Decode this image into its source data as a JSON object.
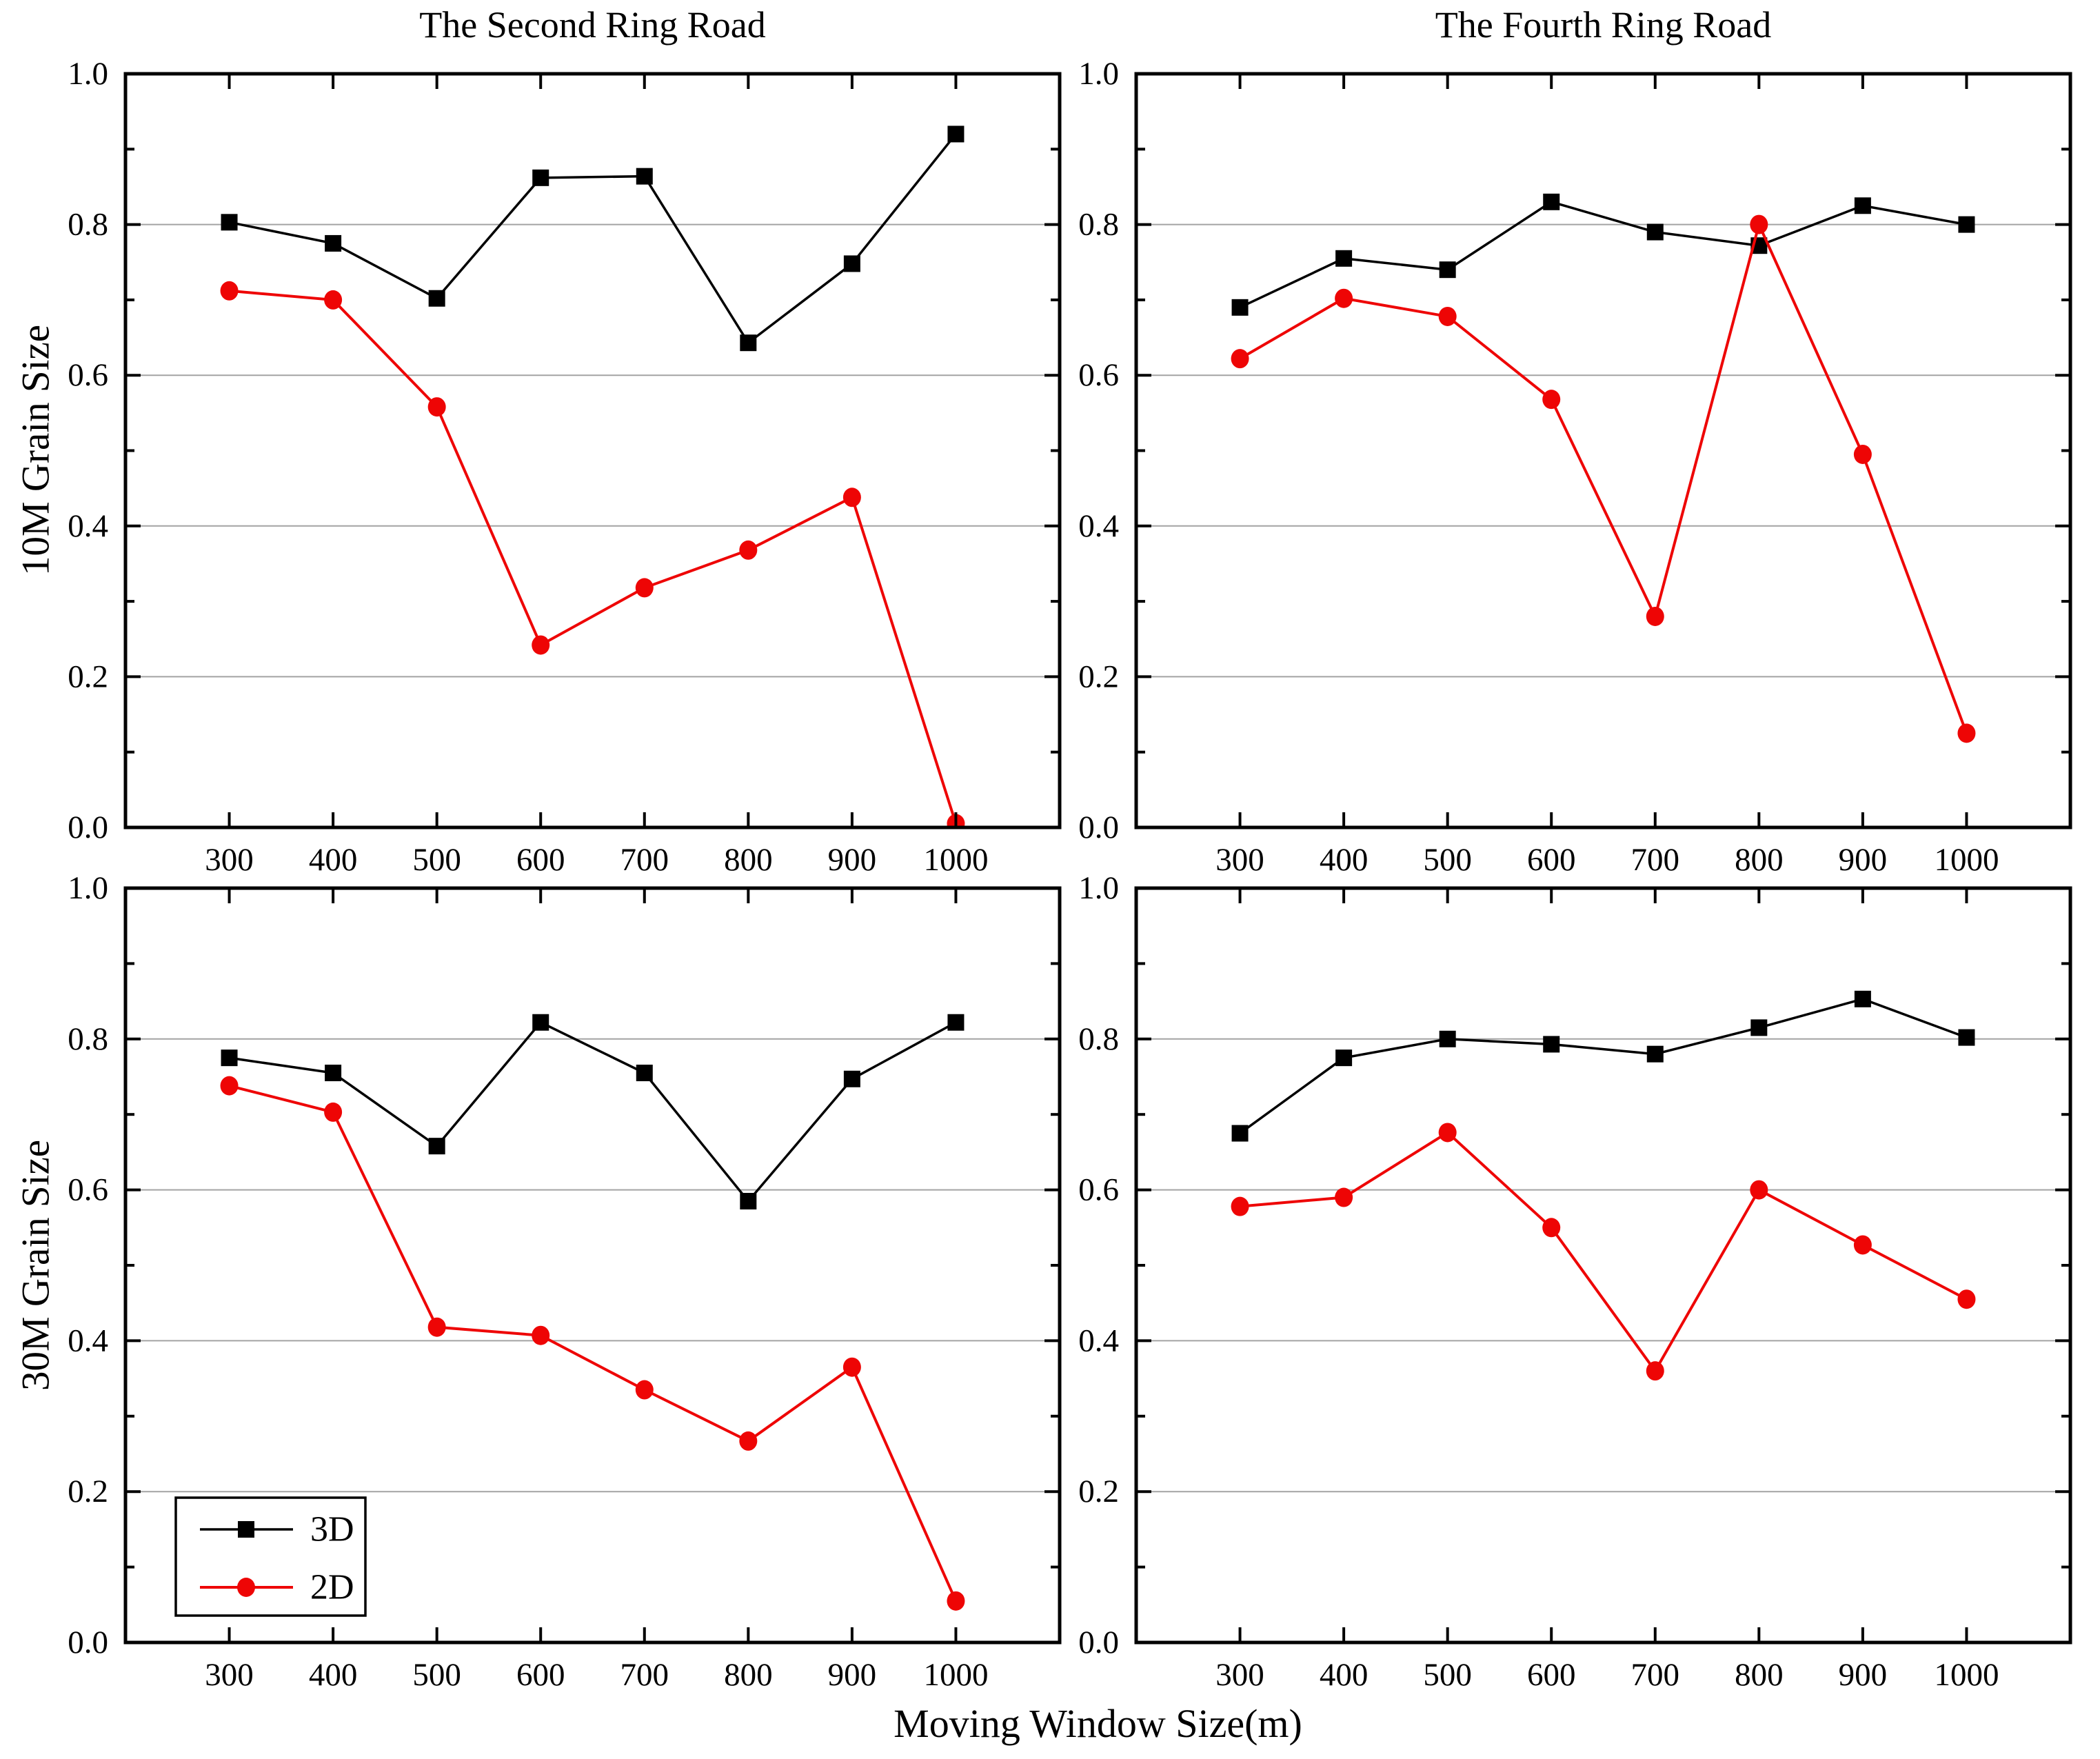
{
  "figure": {
    "x_axis_label": "Moving Window Size(m)",
    "colors": {
      "series_3d": "#000000",
      "series_2d": "#ee0505",
      "gridline": "#a3a3a3",
      "axis": "#000000",
      "background": "#ffffff"
    }
  },
  "legend": {
    "location": "bottom-left-panel lower-left",
    "items": [
      {
        "label": "3D",
        "marker": "square",
        "color": "#000000"
      },
      {
        "label": "2D",
        "marker": "circle",
        "color": "#ee0505"
      }
    ]
  },
  "chart_data": [
    {
      "type": "line",
      "title": "The Second Ring Road",
      "ylabel": "10M Grain Size",
      "x": [
        300,
        400,
        500,
        600,
        700,
        800,
        900,
        1000
      ],
      "x_tick_labels": [
        "300",
        "400",
        "500",
        "600",
        "700",
        "800",
        "900",
        "1000"
      ],
      "xlim": [
        200,
        1100
      ],
      "ylim": [
        0,
        1
      ],
      "y_major_ticks": [
        0.0,
        0.2,
        0.4,
        0.6,
        0.8,
        1.0
      ],
      "y_tick_labels": [
        "0.0",
        "0.2",
        "0.4",
        "0.6",
        "0.8",
        "1.0"
      ],
      "y_minor_ticks": [
        0.1,
        0.3,
        0.5,
        0.7,
        0.9
      ],
      "gridlines_y": [
        0.2,
        0.4,
        0.6,
        0.8
      ],
      "show_legend": false,
      "series": [
        {
          "name": "3D",
          "marker": "square",
          "color": "#000000",
          "values": [
            0.803,
            0.775,
            0.702,
            0.862,
            0.864,
            0.643,
            0.748,
            0.92
          ]
        },
        {
          "name": "2D",
          "marker": "circle",
          "color": "#ee0505",
          "values": [
            0.712,
            0.7,
            0.558,
            0.242,
            0.318,
            0.368,
            0.438,
            0.005
          ]
        }
      ]
    },
    {
      "type": "line",
      "title": "The Fourth Ring Road",
      "ylabel": null,
      "x": [
        300,
        400,
        500,
        600,
        700,
        800,
        900,
        1000
      ],
      "x_tick_labels": [
        "300",
        "400",
        "500",
        "600",
        "700",
        "800",
        "900",
        "1000"
      ],
      "xlim": [
        200,
        1100
      ],
      "ylim": [
        0,
        1
      ],
      "y_major_ticks": [
        0.0,
        0.2,
        0.4,
        0.6,
        0.8,
        1.0
      ],
      "y_tick_labels": [
        "0.0",
        "0.2",
        "0.4",
        "0.6",
        "0.8",
        "1.0"
      ],
      "y_minor_ticks": [
        0.1,
        0.3,
        0.5,
        0.7,
        0.9
      ],
      "gridlines_y": [
        0.2,
        0.4,
        0.6,
        0.8
      ],
      "show_legend": false,
      "series": [
        {
          "name": "3D",
          "marker": "square",
          "color": "#000000",
          "values": [
            0.69,
            0.755,
            0.74,
            0.83,
            0.79,
            0.772,
            0.825,
            0.8
          ]
        },
        {
          "name": "2D",
          "marker": "circle",
          "color": "#ee0505",
          "values": [
            0.622,
            0.702,
            0.678,
            0.568,
            0.28,
            0.8,
            0.495,
            0.125
          ]
        }
      ]
    },
    {
      "type": "line",
      "title": null,
      "ylabel": "30M Grain Size",
      "x": [
        300,
        400,
        500,
        600,
        700,
        800,
        900,
        1000
      ],
      "x_tick_labels": [
        "300",
        "400",
        "500",
        "600",
        "700",
        "800",
        "900",
        "1000"
      ],
      "xlim": [
        200,
        1100
      ],
      "ylim": [
        0,
        1
      ],
      "y_major_ticks": [
        0.0,
        0.2,
        0.4,
        0.6,
        0.8,
        1.0
      ],
      "y_tick_labels": [
        "0.0",
        "0.2",
        "0.4",
        "0.6",
        "0.8",
        "1.0"
      ],
      "y_minor_ticks": [
        0.1,
        0.3,
        0.5,
        0.7,
        0.9
      ],
      "gridlines_y": [
        0.2,
        0.4,
        0.6,
        0.8
      ],
      "show_legend": true,
      "series": [
        {
          "name": "3D",
          "marker": "square",
          "color": "#000000",
          "values": [
            0.775,
            0.755,
            0.658,
            0.822,
            0.755,
            0.585,
            0.747,
            0.822
          ]
        },
        {
          "name": "2D",
          "marker": "circle",
          "color": "#ee0505",
          "values": [
            0.738,
            0.703,
            0.418,
            0.407,
            0.335,
            0.267,
            0.365,
            0.055
          ]
        }
      ]
    },
    {
      "type": "line",
      "title": null,
      "ylabel": null,
      "x": [
        300,
        400,
        500,
        600,
        700,
        800,
        900,
        1000
      ],
      "x_tick_labels": [
        "300",
        "400",
        "500",
        "600",
        "700",
        "800",
        "900",
        "1000"
      ],
      "xlim": [
        200,
        1100
      ],
      "ylim": [
        0,
        1
      ],
      "y_major_ticks": [
        0.0,
        0.2,
        0.4,
        0.6,
        0.8,
        1.0
      ],
      "y_tick_labels": [
        "0.0",
        "0.2",
        "0.4",
        "0.6",
        "0.8",
        "1.0"
      ],
      "y_minor_ticks": [
        0.1,
        0.3,
        0.5,
        0.7,
        0.9
      ],
      "gridlines_y": [
        0.2,
        0.4,
        0.6,
        0.8
      ],
      "show_legend": false,
      "series": [
        {
          "name": "3D",
          "marker": "square",
          "color": "#000000",
          "values": [
            0.675,
            0.775,
            0.8,
            0.793,
            0.78,
            0.815,
            0.853,
            0.802
          ]
        },
        {
          "name": "2D",
          "marker": "circle",
          "color": "#ee0505",
          "values": [
            0.578,
            0.59,
            0.676,
            0.55,
            0.36,
            0.6,
            0.527,
            0.455
          ]
        }
      ]
    }
  ]
}
